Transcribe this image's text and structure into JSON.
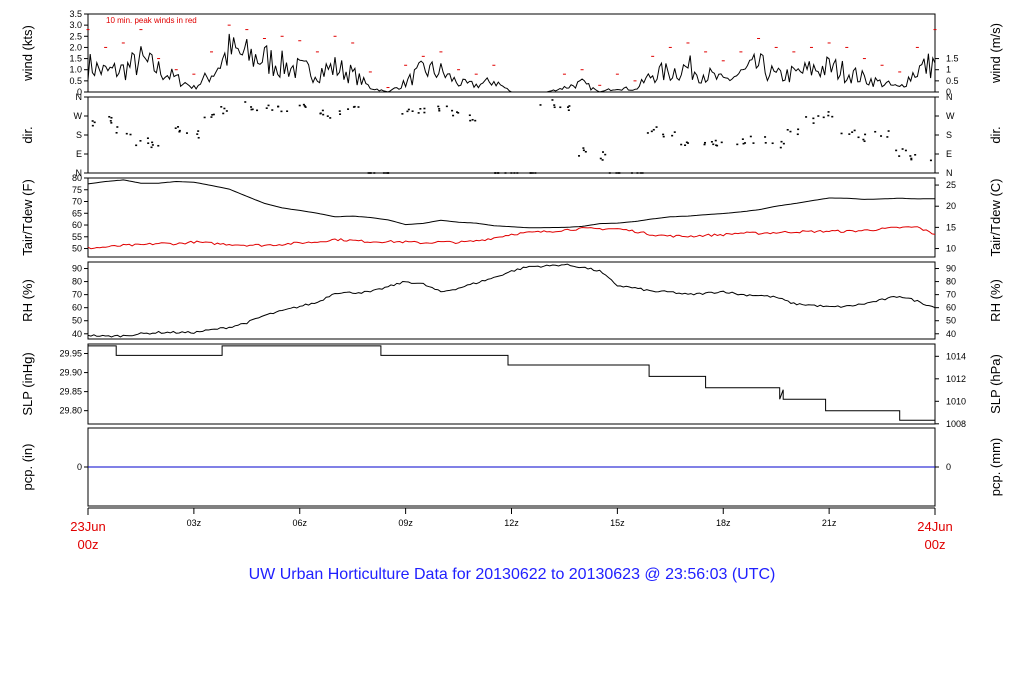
{
  "title": "UW Urban Horticulture Data for 20130622  to  20130623 @ 23:56:03  (UTC)",
  "colors": {
    "series": "#000000",
    "peak": "#e00000",
    "dew": "#e00000",
    "precip": "#0000cc",
    "title": "#2020ff",
    "date": "#e00000"
  },
  "x_axis": {
    "range_hours": [
      0,
      24
    ],
    "ticks": [
      {
        "hour": 3,
        "label": "03z"
      },
      {
        "hour": 6,
        "label": "06z"
      },
      {
        "hour": 9,
        "label": "09z"
      },
      {
        "hour": 12,
        "label": "12z"
      },
      {
        "hour": 15,
        "label": "15z"
      },
      {
        "hour": 18,
        "label": "18z"
      },
      {
        "hour": 21,
        "label": "21z"
      }
    ],
    "start_label": [
      "23Jun",
      "00z"
    ],
    "end_label": [
      "24Jun",
      "00z"
    ]
  },
  "chart_data": [
    {
      "type": "line",
      "name": "wind",
      "ylabel_left": "wind (kts)",
      "ylabel_right": "wind (m/s)",
      "ylim": [
        0,
        3.5
      ],
      "left_ticks": [
        "0",
        "0.5",
        "1.0",
        "1.5",
        "2.0",
        "2.5",
        "3.0",
        "3.5"
      ],
      "left_tick_values": [
        0,
        0.5,
        1.0,
        1.5,
        2.0,
        2.5,
        3.0,
        3.5
      ],
      "right_ticks": [
        "0",
        "0.5",
        "1",
        "1.5"
      ],
      "right_tick_values": [
        0,
        0.5,
        1.0,
        1.5
      ],
      "annotation": "10 min. peak winds in red",
      "x": [
        0,
        0.5,
        1,
        1.5,
        2,
        2.5,
        3,
        3.5,
        4,
        4.5,
        5,
        5.5,
        6,
        6.5,
        7,
        7.5,
        8,
        8.5,
        9,
        9.5,
        10,
        10.5,
        11,
        11.5,
        12,
        12.5,
        13,
        13.5,
        14,
        14.5,
        15,
        15.5,
        16,
        16.5,
        17,
        17.5,
        18,
        18.5,
        19,
        19.5,
        20,
        20.5,
        21,
        21.5,
        22,
        22.5,
        23,
        23.5,
        24
      ],
      "series": [
        {
          "values": [
            1.2,
            0.9,
            1.0,
            1.4,
            1.0,
            0.6,
            0.2,
            0.8,
            1.8,
            1.6,
            1.5,
            1.2,
            1.0,
            0.9,
            1.1,
            0.8,
            0.2,
            0,
            0.4,
            1.0,
            0.9,
            0.4,
            0.3,
            0.5,
            0,
            0,
            0,
            0.2,
            0.4,
            0,
            0.2,
            0.1,
            0.8,
            0.9,
            1.1,
            0.8,
            0.5,
            0.8,
            1.2,
            0.7,
            0.8,
            1.0,
            1.1,
            0.9,
            0.6,
            0.4,
            0.2,
            1.0,
            1.3
          ]
        },
        {
          "values": [
            2.8,
            2.0,
            2.2,
            2.8,
            1.5,
            1.0,
            0.8,
            1.8,
            3.0,
            2.8,
            2.4,
            2.5,
            2.3,
            1.8,
            2.5,
            2.2,
            0.9,
            0.2,
            1.2,
            1.6,
            1.8,
            1.0,
            0.8,
            1.2,
            0,
            0,
            0,
            0.8,
            1.0,
            0.3,
            0.8,
            0.5,
            1.6,
            2.0,
            2.2,
            1.8,
            1.4,
            1.8,
            2.4,
            2.0,
            1.8,
            2.0,
            2.2,
            2.0,
            1.5,
            1.2,
            0.9,
            2.0,
            2.8
          ]
        }
      ]
    },
    {
      "type": "scatter",
      "name": "dir",
      "ylabel_left": "dir.",
      "ylabel_right": "dir.",
      "ylim": [
        0,
        360
      ],
      "left_ticks": [
        "N",
        "E",
        "S",
        "W",
        "N"
      ],
      "left_tick_values": [
        0,
        90,
        180,
        270,
        360
      ],
      "right_ticks": [
        "N",
        "E",
        "S",
        "W",
        "N"
      ],
      "right_tick_values": [
        0,
        90,
        180,
        270,
        360
      ],
      "x": [
        0,
        0.5,
        1,
        1.5,
        2,
        2.5,
        3,
        3.5,
        4,
        4.5,
        5,
        5.5,
        6,
        6.5,
        7,
        7.5,
        8,
        8.5,
        9,
        9.5,
        10,
        10.5,
        11,
        11.5,
        12,
        12.5,
        13,
        13.5,
        14,
        14.5,
        15,
        15.5,
        16,
        16.5,
        17,
        17.5,
        18,
        18.5,
        19,
        19.5,
        20,
        20.5,
        21,
        21.5,
        22,
        22.5,
        23,
        23.5,
        24
      ],
      "series": [
        {
          "values": [
            240,
            250,
            200,
            150,
            140,
            200,
            180,
            280,
            300,
            320,
            310,
            300,
            305,
            290,
            280,
            300,
            0,
            0,
            290,
            300,
            310,
            290,
            260,
            0,
            0,
            0,
            330,
            310,
            100,
            80,
            0,
            0,
            200,
            180,
            140,
            130,
            140,
            150,
            160,
            140,
            200,
            250,
            270,
            200,
            170,
            190,
            100,
            80,
            70
          ]
        }
      ]
    },
    {
      "type": "line",
      "name": "temp",
      "ylabel_left": "Tair/Tdew (F)",
      "ylabel_right": "Tair/Tdew (C)",
      "ylim": [
        46.4,
        80
      ],
      "left_ticks": [
        "50",
        "55",
        "60",
        "65",
        "70",
        "75",
        "80"
      ],
      "left_tick_values": [
        50,
        55,
        60,
        65,
        70,
        75,
        80
      ],
      "right_ticks": [
        "10",
        "15",
        "20",
        "25"
      ],
      "right_tick_values": [
        50,
        59,
        68,
        77
      ],
      "x": [
        0,
        0.5,
        1,
        1.5,
        2,
        2.5,
        3,
        3.5,
        4,
        4.5,
        5,
        5.5,
        6,
        6.5,
        7,
        7.5,
        8,
        8.5,
        9,
        9.5,
        10,
        10.5,
        11,
        11.5,
        12,
        12.5,
        13,
        13.5,
        14,
        14.5,
        15,
        15.5,
        16,
        16.5,
        17,
        17.5,
        18,
        18.5,
        19,
        19.5,
        20,
        20.5,
        21,
        21.5,
        22,
        22.5,
        23,
        23.5,
        24
      ],
      "series": [
        {
          "values": [
            77.5,
            78.5,
            79.2,
            77.8,
            77.8,
            78.5,
            78.2,
            76.8,
            75.3,
            72.2,
            69.2,
            67.3,
            66.2,
            65.0,
            63.5,
            63.8,
            63.2,
            62.2,
            60.2,
            60.7,
            62.0,
            61.2,
            60.8,
            59.7,
            59.3,
            58.8,
            58.9,
            59.0,
            59.4,
            60.6,
            60.8,
            61.5,
            62.6,
            63.5,
            63.8,
            64.4,
            64.9,
            65.6,
            66.5,
            68.0,
            69.1,
            70.3,
            71.5,
            71.4,
            70.9,
            71.1,
            71.4,
            71.1,
            71.2
          ]
        },
        {
          "values": [
            50.2,
            50.6,
            51.3,
            51.5,
            52.2,
            52.0,
            52.8,
            52.2,
            51.8,
            51.5,
            51.4,
            51.8,
            52.4,
            52.8,
            53.9,
            53.4,
            52.9,
            53.0,
            52.8,
            52.4,
            52.8,
            52.6,
            53.2,
            54.5,
            56.1,
            56.8,
            57.2,
            57.9,
            58.5,
            58.4,
            58.4,
            57.3,
            55.9,
            55.3,
            55.2,
            55.6,
            55.9,
            56.6,
            56.5,
            56.8,
            57.1,
            57.2,
            57.4,
            57.3,
            57.7,
            58.3,
            58.9,
            59.1,
            56.0
          ]
        }
      ]
    },
    {
      "type": "line",
      "name": "rh",
      "ylabel_left": "RH (%)",
      "ylabel_right": "RH (%)",
      "ylim": [
        36,
        95
      ],
      "left_ticks": [
        "40",
        "50",
        "60",
        "70",
        "80",
        "90"
      ],
      "left_tick_values": [
        40,
        50,
        60,
        70,
        80,
        90
      ],
      "right_ticks": [
        "40",
        "50",
        "60",
        "70",
        "80",
        "90"
      ],
      "right_tick_values": [
        40,
        50,
        60,
        70,
        80,
        90
      ],
      "x": [
        0,
        0.5,
        1,
        1.5,
        2,
        2.5,
        3,
        3.5,
        4,
        4.5,
        5,
        5.5,
        6,
        6.5,
        7,
        7.5,
        8,
        8.5,
        9,
        9.5,
        10,
        10.5,
        11,
        11.5,
        12,
        12.5,
        13,
        13.5,
        14,
        14.5,
        15,
        15.5,
        16,
        16.5,
        17,
        17.5,
        18,
        18.5,
        19,
        19.5,
        20,
        20.5,
        21,
        21.5,
        22,
        22.5,
        23,
        23.5,
        24
      ],
      "series": [
        {
          "values": [
            39,
            38,
            38.5,
            40,
            41,
            41,
            41,
            43,
            45,
            48.5,
            54,
            57.5,
            61,
            64,
            71.5,
            71.5,
            72,
            76,
            80,
            78,
            72,
            75,
            79,
            83,
            88,
            91.5,
            92,
            93,
            91,
            88,
            77,
            75,
            72.5,
            72,
            70,
            71,
            72.5,
            70,
            69.5,
            68,
            63,
            62,
            60.5,
            61,
            63,
            66,
            69,
            65,
            60
          ]
        }
      ]
    },
    {
      "type": "line",
      "name": "slp",
      "ylabel_left": "SLP (inHg)",
      "ylabel_right": "SLP (hPa)",
      "ylim": [
        29.765,
        29.975
      ],
      "left_ticks": [
        "29.80",
        "29.85",
        "29.90",
        "29.95"
      ],
      "left_tick_values": [
        29.8,
        29.85,
        29.9,
        29.95
      ],
      "right_ticks": [
        "1008",
        "1010",
        "1012",
        "1014"
      ],
      "right_tick_values": [
        29.7655,
        29.8246,
        29.8836,
        29.9427
      ],
      "x": [
        0,
        0.8,
        0.8,
        3.8,
        3.8,
        8.3,
        8.3,
        11.9,
        11.9,
        15.9,
        15.9,
        17.5,
        17.5,
        19.6,
        19.6,
        19.7,
        19.7,
        20.9,
        20.9,
        23.0,
        23.0,
        24
      ],
      "series": [
        {
          "values": [
            29.97,
            29.97,
            29.945,
            29.945,
            29.97,
            29.97,
            29.945,
            29.945,
            29.92,
            29.92,
            29.89,
            29.89,
            29.86,
            29.86,
            29.83,
            29.855,
            29.83,
            29.83,
            29.8,
            29.8,
            29.775,
            29.775
          ]
        }
      ]
    },
    {
      "type": "line",
      "name": "pcp",
      "ylabel_left": "pcp. (in)",
      "ylabel_right": "pcp. (mm)",
      "ylim": [
        -1,
        1
      ],
      "left_ticks": [
        "0"
      ],
      "left_tick_values": [
        0
      ],
      "right_ticks": [
        "0"
      ],
      "right_tick_values": [
        0
      ],
      "x": [
        0,
        24
      ],
      "series": [
        {
          "values": [
            0,
            0
          ]
        }
      ]
    }
  ]
}
